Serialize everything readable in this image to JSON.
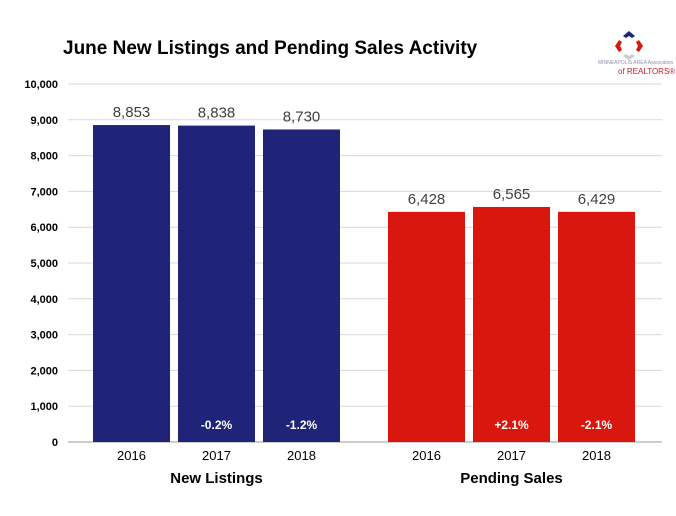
{
  "chart_data": {
    "type": "bar",
    "title": "June New Listings and Pending Sales Activity",
    "ylim": [
      0,
      10000
    ],
    "yticks": [
      "0",
      "1,000",
      "2,000",
      "3,000",
      "4,000",
      "5,000",
      "6,000",
      "7,000",
      "8,000",
      "9,000",
      "10,000"
    ],
    "grid": true,
    "groups": [
      {
        "name": "New Listings",
        "color": "#1f2478",
        "bars": [
          {
            "year": "2016",
            "value": 8853,
            "label": "8,853",
            "change": ""
          },
          {
            "year": "2017",
            "value": 8838,
            "label": "8,838",
            "change": "-0.2%"
          },
          {
            "year": "2018",
            "value": 8730,
            "label": "8,730",
            "change": "-1.2%"
          }
        ]
      },
      {
        "name": "Pending Sales",
        "color": "#d9170e",
        "bars": [
          {
            "year": "2016",
            "value": 6428,
            "label": "6,428",
            "change": ""
          },
          {
            "year": "2017",
            "value": 6565,
            "label": "6,565",
            "change": "+2.1%"
          },
          {
            "year": "2018",
            "value": 6429,
            "label": "6,429",
            "change": "-2.1%"
          }
        ]
      }
    ]
  },
  "logo": {
    "line1": "MINNEAPOLIS AREA Association",
    "line2": "of REALTORS®"
  }
}
